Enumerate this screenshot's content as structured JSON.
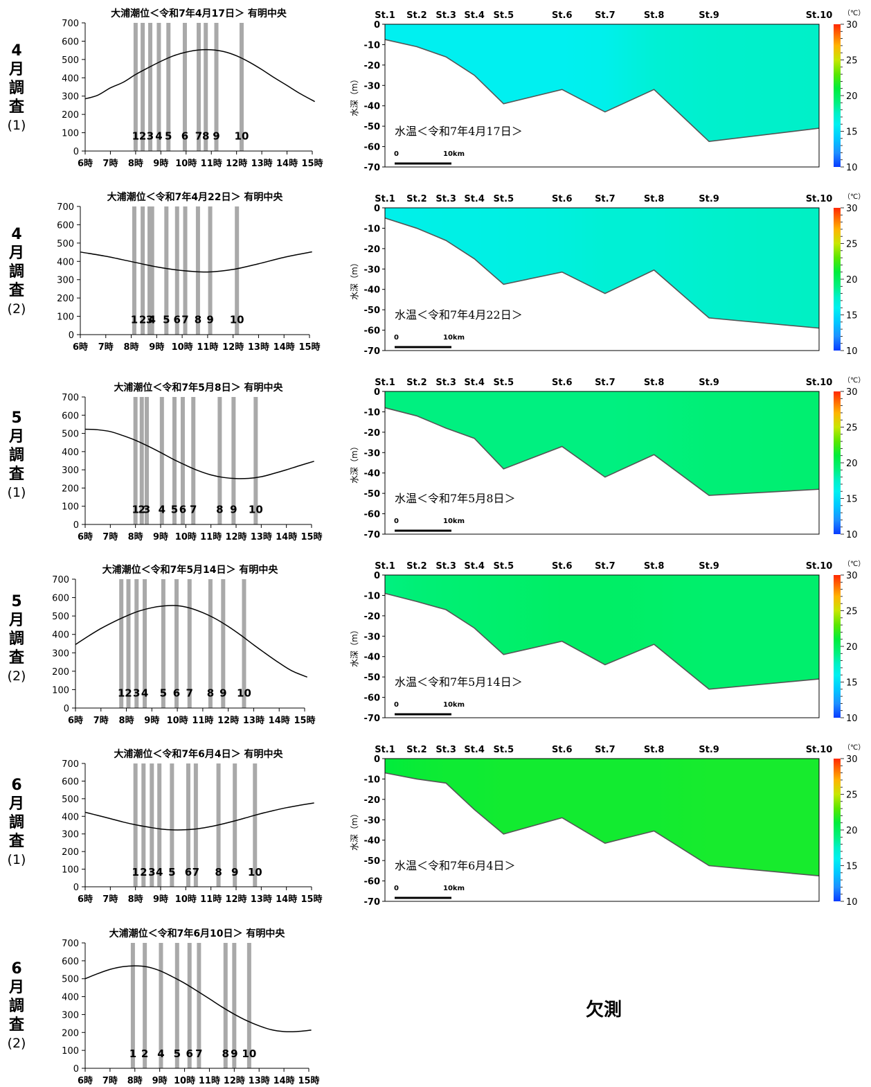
{
  "survey_labels": [
    {
      "month": "4",
      "ch1": "月",
      "ch2": "調",
      "ch3": "査",
      "num": "(1)"
    },
    {
      "month": "4",
      "ch1": "月",
      "ch2": "調",
      "ch3": "査",
      "num": "(2)"
    },
    {
      "month": "5",
      "ch1": "月",
      "ch2": "調",
      "ch3": "査",
      "num": "(1)"
    },
    {
      "month": "5",
      "ch1": "月",
      "ch2": "調",
      "ch3": "査",
      "num": "(2)"
    },
    {
      "month": "6",
      "ch1": "月",
      "ch2": "調",
      "ch3": "査",
      "num": "(1)"
    },
    {
      "month": "6",
      "ch1": "月",
      "ch2": "調",
      "ch3": "査",
      "num": "(2)"
    }
  ],
  "missing_text": "欠測",
  "chart_data": [
    {
      "type": "line",
      "title": "大浦潮位＜令和7年4月17日＞ 有明中央",
      "x_hours": [
        6,
        7,
        8,
        9,
        10,
        11,
        12,
        13,
        14,
        15
      ],
      "x_labels": [
        "6時",
        "7時",
        "8時",
        "9時",
        "10時",
        "11時",
        "12時",
        "13時",
        "14時",
        "15時"
      ],
      "ylim": [
        0,
        700
      ],
      "yticks": [
        0,
        100,
        200,
        300,
        400,
        500,
        600,
        700
      ],
      "tide": [
        [
          6.0,
          285
        ],
        [
          6.5,
          305
        ],
        [
          7.0,
          345
        ],
        [
          7.5,
          375
        ],
        [
          8.0,
          418
        ],
        [
          8.5,
          455
        ],
        [
          9.0,
          490
        ],
        [
          9.5,
          520
        ],
        [
          10.0,
          540
        ],
        [
          10.5,
          552
        ],
        [
          11.0,
          553
        ],
        [
          11.5,
          543
        ],
        [
          12.0,
          520
        ],
        [
          12.5,
          486
        ],
        [
          13.0,
          445
        ],
        [
          13.5,
          400
        ],
        [
          14.0,
          358
        ],
        [
          14.5,
          315
        ],
        [
          15.1,
          270
        ]
      ],
      "station_times": [
        8.0,
        8.28,
        8.58,
        8.92,
        9.3,
        9.95,
        10.5,
        10.78,
        11.2,
        12.2
      ],
      "station_labels": [
        "1",
        "2",
        "3",
        "4",
        "5",
        "6",
        "7",
        "8",
        "9",
        "10"
      ]
    },
    {
      "type": "line",
      "title": "大浦潮位＜令和7年4月22日＞ 有明中央",
      "x_hours": [
        6,
        7,
        8,
        9,
        10,
        11,
        12,
        13,
        14,
        15
      ],
      "x_labels": [
        "6時",
        "7時",
        "8時",
        "9時",
        "10時",
        "11時",
        "12時",
        "13時",
        "14時",
        "15時"
      ],
      "ylim": [
        0,
        700
      ],
      "yticks": [
        0,
        100,
        200,
        300,
        400,
        500,
        600,
        700
      ],
      "tide": [
        [
          6.0,
          451
        ],
        [
          7.0,
          428
        ],
        [
          8.0,
          399
        ],
        [
          9.0,
          370
        ],
        [
          10.0,
          350
        ],
        [
          11.0,
          342
        ],
        [
          12.0,
          356
        ],
        [
          13.0,
          387
        ],
        [
          14.0,
          422
        ],
        [
          15.1,
          452
        ]
      ],
      "station_times": [
        8.12,
        8.45,
        8.72,
        8.82,
        9.38,
        9.8,
        10.12,
        10.62,
        11.1,
        12.15
      ],
      "station_labels": [
        "1",
        "2",
        "3",
        "4",
        "5",
        "6",
        "7",
        "8",
        "9",
        "10"
      ]
    },
    {
      "type": "line",
      "title": "大浦潮位＜令和7年5月8日＞ 有明中央",
      "x_hours": [
        6,
        7,
        8,
        9,
        10,
        11,
        12,
        13,
        14,
        15
      ],
      "x_labels": [
        "6時",
        "7時",
        "8時",
        "9時",
        "10時",
        "11時",
        "12時",
        "13時",
        "14時",
        "15時"
      ],
      "ylim": [
        0,
        700
      ],
      "yticks": [
        0,
        100,
        200,
        300,
        400,
        500,
        600,
        700
      ],
      "tide": [
        [
          6.0,
          523
        ],
        [
          6.5,
          520
        ],
        [
          7.0,
          510
        ],
        [
          7.5,
          488
        ],
        [
          8.0,
          462
        ],
        [
          8.5,
          430
        ],
        [
          9.0,
          395
        ],
        [
          9.5,
          358
        ],
        [
          10.0,
          325
        ],
        [
          10.5,
          295
        ],
        [
          11.0,
          272
        ],
        [
          11.5,
          258
        ],
        [
          12.0,
          252
        ],
        [
          12.5,
          253
        ],
        [
          13.0,
          262
        ],
        [
          13.5,
          280
        ],
        [
          14.0,
          300
        ],
        [
          14.5,
          322
        ],
        [
          15.1,
          347
        ]
      ],
      "station_times": [
        8.0,
        8.25,
        8.45,
        9.05,
        9.55,
        9.88,
        10.3,
        11.35,
        11.9,
        12.78
      ],
      "station_labels": [
        "1",
        "2",
        "3",
        "4",
        "5",
        "6",
        "7",
        "8",
        "9",
        "10"
      ]
    },
    {
      "type": "line",
      "title": "大浦潮位＜令和7年5月14日＞ 有明中央",
      "x_hours": [
        6,
        7,
        8,
        9,
        10,
        11,
        12,
        13,
        14,
        15
      ],
      "x_labels": [
        "6時",
        "7時",
        "8時",
        "9時",
        "10時",
        "11時",
        "12時",
        "13時",
        "14時",
        "15時"
      ],
      "ylim": [
        0,
        700
      ],
      "yticks": [
        0,
        100,
        200,
        300,
        400,
        500,
        600,
        700
      ],
      "tide": [
        [
          6.0,
          345
        ],
        [
          6.5,
          390
        ],
        [
          7.0,
          432
        ],
        [
          7.5,
          468
        ],
        [
          8.0,
          500
        ],
        [
          8.5,
          527
        ],
        [
          9.0,
          545
        ],
        [
          9.5,
          555
        ],
        [
          10.0,
          556
        ],
        [
          10.5,
          543
        ],
        [
          11.0,
          518
        ],
        [
          11.5,
          485
        ],
        [
          12.0,
          443
        ],
        [
          12.5,
          395
        ],
        [
          13.0,
          343
        ],
        [
          13.5,
          293
        ],
        [
          14.0,
          245
        ],
        [
          14.5,
          202
        ],
        [
          15.1,
          168
        ]
      ],
      "station_times": [
        7.8,
        8.08,
        8.4,
        8.72,
        9.45,
        9.97,
        10.48,
        11.3,
        11.8,
        12.62
      ],
      "station_labels": [
        "1",
        "2",
        "3",
        "4",
        "5",
        "6",
        "7",
        "8",
        "9",
        "10"
      ]
    },
    {
      "type": "line",
      "title": "大浦潮位＜令和7年6月4日＞ 有明中央",
      "x_hours": [
        6,
        7,
        8,
        9,
        10,
        11,
        12,
        13,
        14,
        15
      ],
      "x_labels": [
        "6時",
        "7時",
        "8時",
        "9時",
        "10時",
        "11時",
        "12時",
        "13時",
        "14時",
        "15時"
      ],
      "ylim": [
        0,
        700
      ],
      "yticks": [
        0,
        100,
        200,
        300,
        400,
        500,
        600,
        700
      ],
      "tide": [
        [
          6.0,
          423
        ],
        [
          6.5,
          405
        ],
        [
          7.0,
          387
        ],
        [
          7.5,
          368
        ],
        [
          8.0,
          352
        ],
        [
          8.5,
          339
        ],
        [
          9.0,
          328
        ],
        [
          9.5,
          323
        ],
        [
          10.0,
          324
        ],
        [
          10.5,
          330
        ],
        [
          11.0,
          342
        ],
        [
          11.5,
          358
        ],
        [
          12.0,
          376
        ],
        [
          12.5,
          396
        ],
        [
          13.0,
          416
        ],
        [
          13.5,
          433
        ],
        [
          14.0,
          449
        ],
        [
          14.5,
          462
        ],
        [
          15.1,
          476
        ]
      ],
      "station_times": [
        8.0,
        8.32,
        8.65,
        8.95,
        9.45,
        10.1,
        10.4,
        11.3,
        11.95,
        12.75
      ],
      "station_labels": [
        "1",
        "2",
        "3",
        "4",
        "5",
        "6",
        "7",
        "8",
        "9",
        "10"
      ]
    },
    {
      "type": "line",
      "title": "大浦潮位＜令和7年6月10日＞ 有明中央",
      "x_hours": [
        6,
        7,
        8,
        9,
        10,
        11,
        12,
        13,
        14,
        15
      ],
      "x_labels": [
        "6時",
        "7時",
        "8時",
        "9時",
        "10時",
        "11時",
        "12時",
        "13時",
        "14時",
        "15時"
      ],
      "ylim": [
        0,
        700
      ],
      "yticks": [
        0,
        100,
        200,
        300,
        400,
        500,
        600,
        700
      ],
      "tide": [
        [
          6.0,
          500
        ],
        [
          6.5,
          528
        ],
        [
          7.0,
          552
        ],
        [
          7.5,
          567
        ],
        [
          8.0,
          572
        ],
        [
          8.5,
          566
        ],
        [
          9.0,
          545
        ],
        [
          9.5,
          512
        ],
        [
          10.0,
          475
        ],
        [
          10.5,
          432
        ],
        [
          11.0,
          388
        ],
        [
          11.5,
          343
        ],
        [
          12.0,
          302
        ],
        [
          12.5,
          266
        ],
        [
          13.0,
          237
        ],
        [
          13.5,
          215
        ],
        [
          14.0,
          205
        ],
        [
          14.5,
          205
        ],
        [
          15.1,
          213
        ]
      ],
      "station_times": [
        7.92,
        8.4,
        9.05,
        9.7,
        10.2,
        10.58,
        11.65,
        12.0,
        12.6
      ],
      "station_labels": [
        "1",
        "2",
        "4",
        "5",
        "6",
        "7",
        "8",
        "9",
        "10"
      ]
    },
    {
      "type": "heatmap",
      "title": "水温＜令和7年4月17日＞",
      "ylabel": "水深（m）",
      "ylim": [
        -70,
        0
      ],
      "yticks": [
        0,
        -10,
        -20,
        -30,
        -40,
        -50,
        -60,
        -70
      ],
      "stations": [
        "St.1",
        "St.2",
        "St.3",
        "St.4",
        "St.5",
        "St.6",
        "St.7",
        "St.8",
        "St.9",
        "St.10"
      ],
      "station_km": [
        0,
        3.7,
        7.1,
        10.4,
        13.8,
        20.6,
        25.6,
        31.3,
        37.7,
        50.5
      ],
      "bottom_m": [
        -7.5,
        -11,
        -16,
        -25,
        -39,
        -32,
        -43,
        -32,
        -57.5,
        -51
      ],
      "surface_temp_c": [
        16.0,
        16.0,
        16.0,
        16.0,
        16.0,
        16.0,
        16.2,
        17.0,
        17.3,
        17.5
      ],
      "colorbar": {
        "unit": "（℃）",
        "min": 10,
        "max": 30,
        "ticks": [
          30,
          25,
          20,
          15,
          10
        ]
      },
      "scale": {
        "zero": "0",
        "end": "10km"
      }
    },
    {
      "type": "heatmap",
      "title": "水温＜令和7年4月22日＞",
      "ylabel": "水深（m）",
      "ylim": [
        -70,
        0
      ],
      "yticks": [
        0,
        -10,
        -20,
        -30,
        -40,
        -50,
        -60,
        -70
      ],
      "stations": [
        "St.1",
        "St.2",
        "St.3",
        "St.4",
        "St.5",
        "St.6",
        "St.7",
        "St.8",
        "St.9",
        "St.10"
      ],
      "station_km": [
        0,
        3.7,
        7.1,
        10.4,
        13.8,
        20.6,
        25.6,
        31.3,
        37.7,
        50.5
      ],
      "bottom_m": [
        -5,
        -10,
        -16,
        -25,
        -37.5,
        -31.5,
        -42,
        -30.5,
        -54,
        -59
      ],
      "surface_temp_c": [
        16.2,
        16.3,
        16.4,
        16.4,
        16.5,
        16.7,
        17.0,
        17.0,
        17.3,
        17.6
      ],
      "colorbar": {
        "unit": "（℃）",
        "min": 10,
        "max": 30,
        "ticks": [
          30,
          25,
          20,
          15,
          10
        ]
      },
      "scale": {
        "zero": "0",
        "end": "10km"
      }
    },
    {
      "type": "heatmap",
      "title": "水温＜令和7年5月8日＞",
      "ylabel": "水深（m）",
      "ylim": [
        -70,
        0
      ],
      "yticks": [
        0,
        -10,
        -20,
        -30,
        -40,
        -50,
        -60,
        -70
      ],
      "stations": [
        "St.1",
        "St.2",
        "St.3",
        "St.4",
        "St.5",
        "St.6",
        "St.7",
        "St.8",
        "St.9",
        "St.10"
      ],
      "station_km": [
        0,
        3.7,
        7.1,
        10.4,
        13.8,
        20.6,
        25.6,
        31.3,
        37.7,
        50.5
      ],
      "bottom_m": [
        -8,
        -12,
        -18,
        -23,
        -38,
        -27,
        -42,
        -31,
        -51,
        -48
      ],
      "surface_temp_c": [
        19.0,
        19.0,
        19.0,
        19.0,
        19.0,
        19.0,
        19.0,
        19.1,
        19.3,
        19.5
      ],
      "colorbar": {
        "unit": "（℃）",
        "min": 10,
        "max": 30,
        "ticks": [
          30,
          25,
          20,
          15,
          10
        ]
      },
      "scale": {
        "zero": "0",
        "end": "10km"
      }
    },
    {
      "type": "heatmap",
      "title": "水温＜令和7年5月14日＞",
      "ylabel": "水深（m）",
      "ylim": [
        -70,
        0
      ],
      "yticks": [
        0,
        -10,
        -20,
        -30,
        -40,
        -50,
        -60,
        -70
      ],
      "stations": [
        "St.1",
        "St.2",
        "St.3",
        "St.4",
        "St.5",
        "St.6",
        "St.7",
        "St.8",
        "St.9",
        "St.10"
      ],
      "station_km": [
        0,
        3.7,
        7.1,
        10.4,
        13.8,
        20.6,
        25.6,
        31.3,
        37.7,
        50.5
      ],
      "bottom_m": [
        -9,
        -13,
        -17,
        -26,
        -39,
        -32.5,
        -44,
        -34,
        -56,
        -51
      ],
      "surface_temp_c": [
        19.0,
        19.3,
        19.4,
        19.5,
        19.6,
        19.8,
        19.8,
        19.7,
        19.6,
        19.6
      ],
      "colorbar": {
        "unit": "（℃）",
        "min": 10,
        "max": 30,
        "ticks": [
          30,
          25,
          20,
          15,
          10
        ]
      },
      "scale": {
        "zero": "0",
        "end": "10km"
      }
    },
    {
      "type": "heatmap",
      "title": "水温＜令和7年6月4日＞",
      "ylabel": "水深（m）",
      "ylim": [
        -70,
        0
      ],
      "yticks": [
        0,
        -10,
        -20,
        -30,
        -40,
        -50,
        -60,
        -70
      ],
      "stations": [
        "St.1",
        "St.2",
        "St.3",
        "St.4",
        "St.5",
        "St.6",
        "St.7",
        "St.8",
        "St.9",
        "St.10"
      ],
      "station_km": [
        0,
        3.7,
        7.1,
        10.4,
        13.8,
        20.6,
        25.6,
        31.3,
        37.7,
        50.5
      ],
      "bottom_m": [
        -7,
        -10,
        -12,
        -25,
        -37,
        -29,
        -41.5,
        -35.5,
        -52.5,
        -57.5
      ],
      "surface_temp_c": [
        21.0,
        21.2,
        21.3,
        21.3,
        21.4,
        21.4,
        21.4,
        21.4,
        21.5,
        21.5
      ],
      "colorbar": {
        "unit": "（℃）",
        "min": 10,
        "max": 30,
        "ticks": [
          30,
          25,
          20,
          15,
          10
        ]
      },
      "scale": {
        "zero": "0",
        "end": "10km"
      }
    }
  ]
}
